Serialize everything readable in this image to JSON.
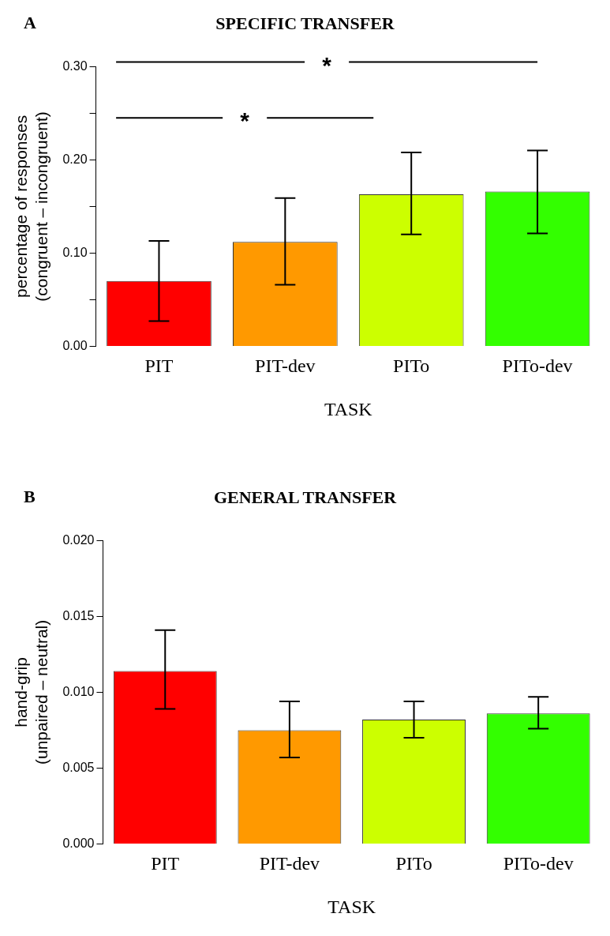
{
  "chart_data": [
    {
      "type": "bar",
      "title": "SPECIFIC TRANSFER",
      "xlabel": "TASK",
      "ylabel": "percentage of responses\n(congruent – incongruent)",
      "categories": [
        "PIT",
        "PIT-dev",
        "PITo",
        "PITo-dev"
      ],
      "values": [
        0.07,
        0.112,
        0.163,
        0.166
      ],
      "colors": [
        "#ff0000",
        "#ff9900",
        "#ccff00",
        "#33ff00"
      ],
      "errors": [
        [
          0.027,
          0.113
        ],
        [
          0.066,
          0.159
        ],
        [
          0.12,
          0.208
        ],
        [
          0.121,
          0.21
        ]
      ],
      "ylim": [
        0,
        0.3
      ],
      "yticks": [
        {
          "value": 0,
          "label": "0.00"
        },
        {
          "value": 0.05,
          "label": null
        },
        {
          "value": 0.1,
          "label": "0.10"
        },
        {
          "value": 0.15,
          "label": null
        },
        {
          "value": 0.2,
          "label": "0.20"
        },
        {
          "value": 0.25,
          "label": null
        },
        {
          "value": 0.3,
          "label": "0.30"
        }
      ],
      "annotations": [
        "A",
        "*",
        "*"
      ],
      "grid": false,
      "legend": false
    },
    {
      "type": "bar",
      "title": "GENERAL TRANSFER",
      "xlabel": "TASK",
      "ylabel": "hand-grip\n(unpaired – neutral)",
      "categories": [
        "PIT",
        "PIT-dev",
        "PITo",
        "PITo-dev"
      ],
      "values": [
        0.0114,
        0.0075,
        0.0082,
        0.0086
      ],
      "colors": [
        "#ff0000",
        "#ff9900",
        "#ccff00",
        "#33ff00"
      ],
      "errors": [
        [
          0.0089,
          0.0141
        ],
        [
          0.0057,
          0.0094
        ],
        [
          0.007,
          0.0094
        ],
        [
          0.0076,
          0.0097
        ]
      ],
      "ylim": [
        0,
        0.02
      ],
      "yticks": [
        {
          "value": 0,
          "label": "0.000"
        },
        {
          "value": 0.005,
          "label": "0.005"
        },
        {
          "value": 0.01,
          "label": "0.010"
        },
        {
          "value": 0.015,
          "label": "0.015"
        },
        {
          "value": 0.02,
          "label": "0.020"
        }
      ],
      "annotations": [
        "B"
      ],
      "grid": false,
      "legend": false
    }
  ]
}
